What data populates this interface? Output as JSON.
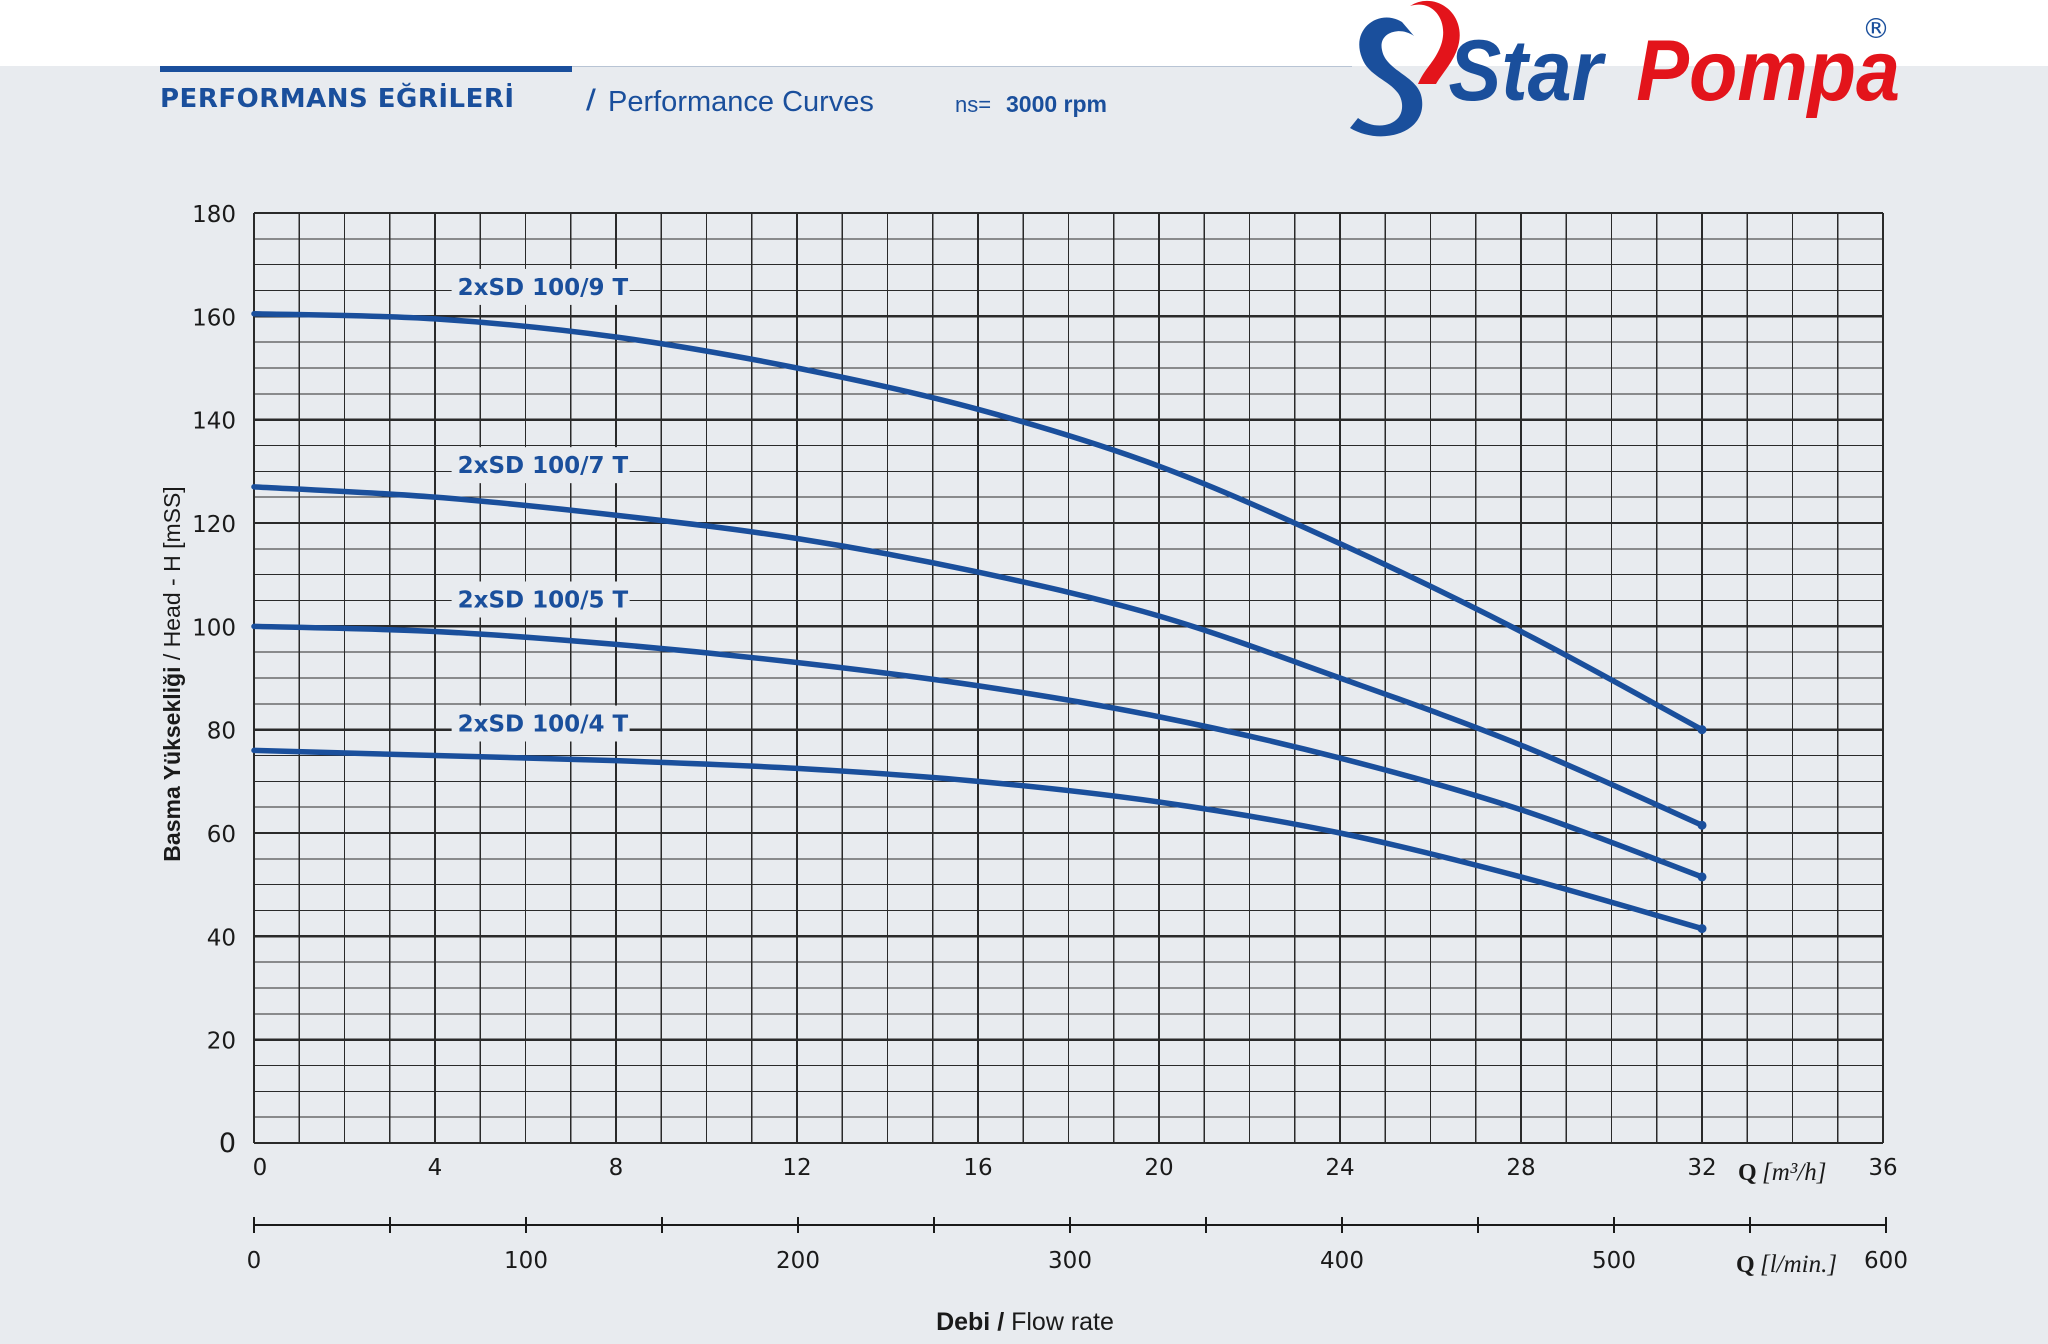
{
  "header": {
    "title_tr": "PERFORMANS EĞRİLERİ",
    "separator": "/",
    "title_en": "Performance Curves",
    "speed_label": "ns=",
    "speed_value": "3000 rpm"
  },
  "logo": {
    "text_star": "Star",
    "text_pompa": "Pompa",
    "registered": "®",
    "colors": {
      "blue": "#1a4f9c",
      "red": "#e3141b"
    }
  },
  "chart_data": {
    "type": "line",
    "ylabel_bold": "Basma Yüksekliği",
    "ylabel_rest": " / Head - H [mSS]",
    "xlabel_bold": "Debi /",
    "xlabel_rest": " Flow rate",
    "x_unit_q": "Q",
    "x_unit_m3h": "[m³/h]",
    "x2_unit_lmin": "[l/min.]",
    "xlim": [
      0,
      36
    ],
    "ylim": [
      0,
      180
    ],
    "x_ticks": [
      "0",
      "4",
      "8",
      "12",
      "16",
      "20",
      "24",
      "28",
      "32",
      "36"
    ],
    "y_ticks": [
      "0",
      "20",
      "40",
      "60",
      "80",
      "100",
      "120",
      "140",
      "160",
      "180"
    ],
    "x2_ticks": [
      "0",
      "100",
      "200",
      "300",
      "400",
      "500",
      "600"
    ],
    "grid": true,
    "line_color": "#1a4f9c",
    "series": [
      {
        "name": "2xSD 100/9 T",
        "x": [
          0,
          4,
          8,
          12,
          16,
          20,
          24,
          28,
          32
        ],
        "y": [
          160.5,
          159.5,
          156,
          150,
          142,
          131,
          116,
          99,
          80
        ]
      },
      {
        "name": "2xSD 100/7 T",
        "x": [
          0,
          4,
          8,
          12,
          16,
          20,
          24,
          28,
          32
        ],
        "y": [
          127,
          125,
          121.5,
          117,
          110.5,
          102,
          90,
          77,
          61.5
        ]
      },
      {
        "name": "2xSD 100/5 T",
        "x": [
          0,
          4,
          8,
          12,
          16,
          20,
          24,
          28,
          32
        ],
        "y": [
          100,
          99,
          96.5,
          93,
          88.5,
          82.5,
          74.5,
          64.5,
          51.5
        ]
      },
      {
        "name": "2xSD 100/4 T",
        "x": [
          0,
          4,
          8,
          12,
          16,
          20,
          24,
          28,
          32
        ],
        "y": [
          76,
          75,
          74,
          72.5,
          70,
          66,
          60,
          51.5,
          41.5
        ]
      }
    ]
  }
}
